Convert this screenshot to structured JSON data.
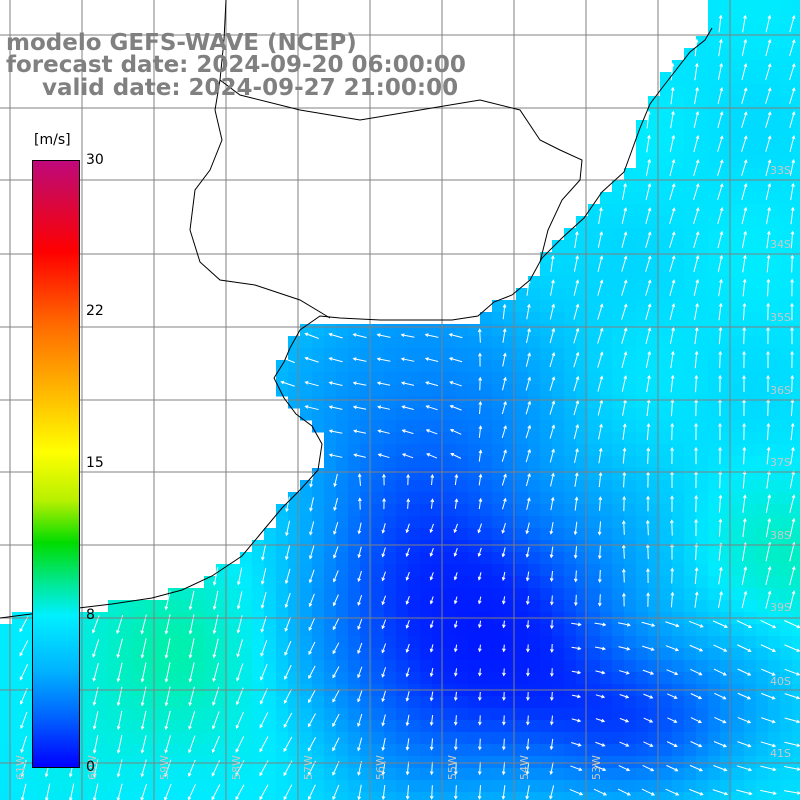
{
  "title": {
    "line1": "modelo GEFS-WAVE (NCEP)",
    "line2": "forecast date: 2024-09-20 06:00:00",
    "line3": "valid date: 2024-09-27 21:00:00"
  },
  "colorbar": {
    "unit": "[m/s]",
    "ticks": [
      "30",
      "22",
      "15",
      "8",
      "0"
    ],
    "tick_values": [
      30,
      22,
      15,
      8,
      0
    ],
    "min": 0,
    "max": 30
  },
  "grid": {
    "lat_labels": [
      "33S",
      "34S",
      "35S",
      "36S",
      "37S",
      "38S",
      "39S",
      "40S",
      "41S"
    ],
    "lon_labels": [
      "61W",
      "60W",
      "59W",
      "58W",
      "57W",
      "56W",
      "55W",
      "54W",
      "53W"
    ]
  },
  "colors": {
    "grid": "#808080",
    "coast": "#000000",
    "vector": "#ffffff",
    "land": "#ffffff"
  }
}
